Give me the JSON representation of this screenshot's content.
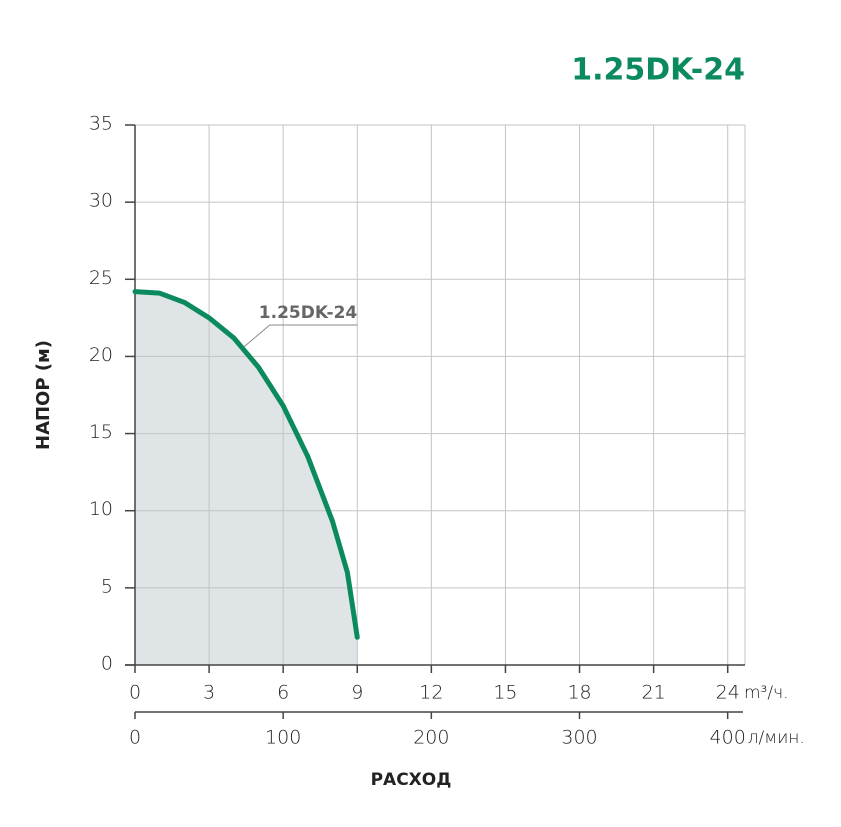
{
  "chart_data": {
    "type": "line",
    "title": "1.25DK-24",
    "x_label": "РАСХОД",
    "y_label": "НАПОР (м)",
    "x_unit": "m³/ч.",
    "x2_unit": "л/мин.",
    "xlim": [
      0,
      24.7
    ],
    "xticks": [
      0,
      3,
      6,
      9,
      12,
      15,
      18,
      21,
      24
    ],
    "x2lim": [
      0,
      411.7
    ],
    "x2ticks": [
      0,
      100,
      200,
      300,
      400
    ],
    "ylim": [
      0,
      35
    ],
    "yticks": [
      0,
      5,
      10,
      15,
      20,
      25,
      30,
      35
    ],
    "grid": true,
    "fill_color": "#dfe4e6",
    "series": [
      {
        "name": "1.25DK-24",
        "color": "#0b8a5e",
        "x": [
          0,
          1,
          2,
          3,
          4,
          5,
          6,
          7,
          8,
          8.6,
          9
        ],
        "values": [
          24.2,
          24.1,
          23.5,
          22.5,
          21.2,
          19.3,
          16.8,
          13.5,
          9.3,
          6,
          1.8
        ]
      }
    ]
  }
}
